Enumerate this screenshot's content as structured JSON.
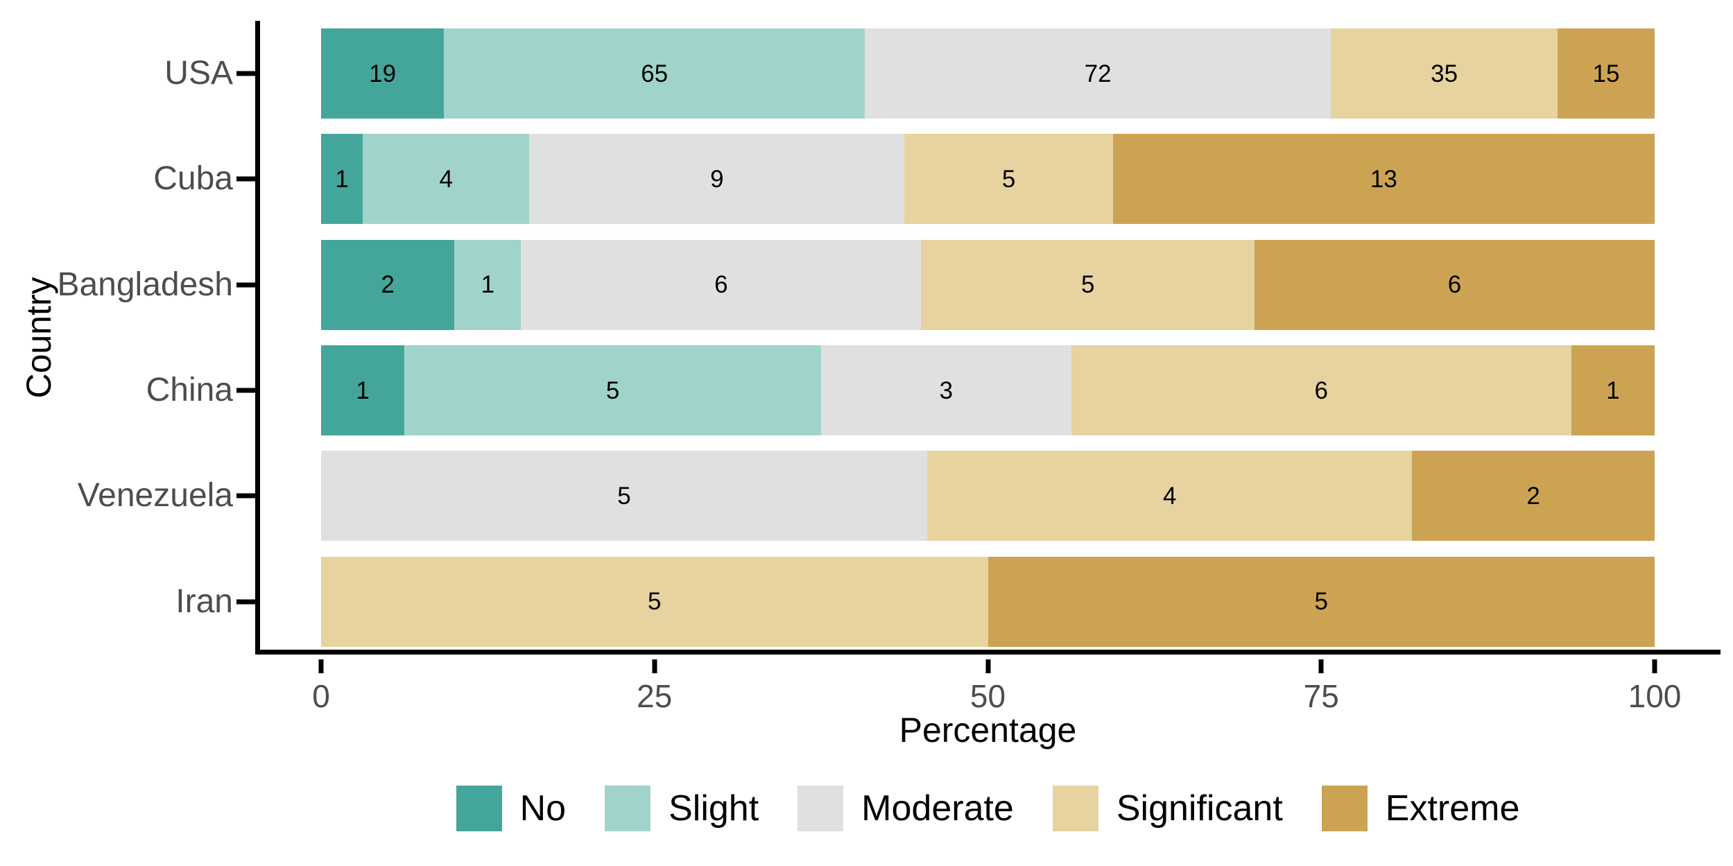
{
  "chart_data": {
    "type": "bar",
    "orientation": "horizontal",
    "stacking": "percent",
    "title": "",
    "xlabel": "Percentage",
    "ylabel": "Country",
    "xlim": [
      0,
      100
    ],
    "x_ticks": [
      0,
      25,
      50,
      75,
      100
    ],
    "grid": false,
    "legend_position": "bottom",
    "categories": [
      "USA",
      "Cuba",
      "Bangladesh",
      "China",
      "Venezuela",
      "Iran"
    ],
    "series": [
      {
        "name": "No",
        "color": "#44a69a",
        "values": [
          19,
          1,
          2,
          1,
          0,
          0
        ]
      },
      {
        "name": "Slight",
        "color": "#a0d4ca",
        "values": [
          65,
          4,
          1,
          5,
          0,
          0
        ]
      },
      {
        "name": "Moderate",
        "color": "#e0e0e0",
        "values": [
          72,
          9,
          6,
          3,
          5,
          0
        ]
      },
      {
        "name": "Significant",
        "color": "#e6d3a0",
        "values": [
          35,
          5,
          5,
          6,
          4,
          5
        ]
      },
      {
        "name": "Extreme",
        "color": "#cca352",
        "values": [
          15,
          13,
          6,
          1,
          2,
          5
        ]
      }
    ],
    "bar_value_labels_shown": true,
    "styles": {
      "axis_text_color": "#4d4d4d",
      "axis_title_color": "#000000",
      "axis_line_color": "#000000",
      "panel_background": "#ffffff"
    }
  }
}
